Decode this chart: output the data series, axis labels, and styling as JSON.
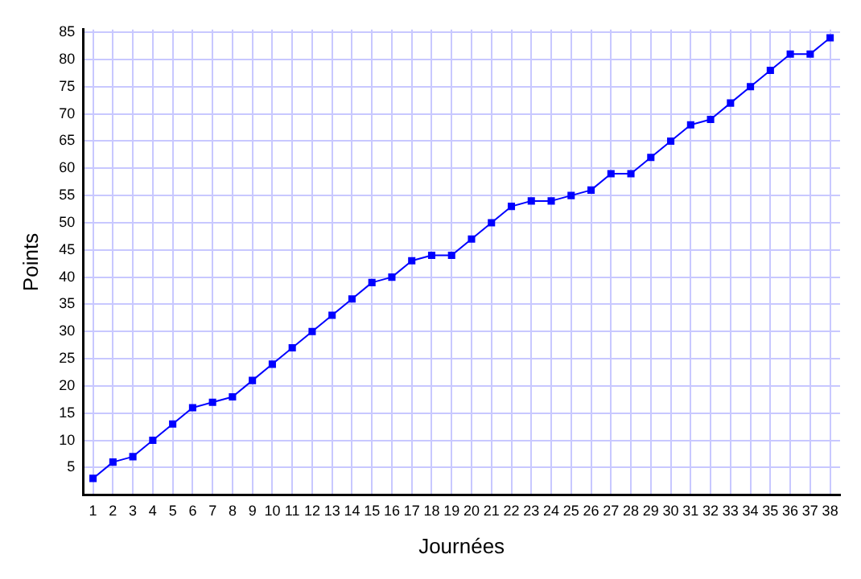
{
  "chart_data": {
    "type": "line",
    "xlabel": "Journées",
    "ylabel": "Points",
    "x": [
      1,
      2,
      3,
      4,
      5,
      6,
      7,
      8,
      9,
      10,
      11,
      12,
      13,
      14,
      15,
      16,
      17,
      18,
      19,
      20,
      21,
      22,
      23,
      24,
      25,
      26,
      27,
      28,
      29,
      30,
      31,
      32,
      33,
      34,
      35,
      36,
      37,
      38
    ],
    "series": [
      {
        "color": "#0000ff",
        "values": [
          3,
          6,
          7,
          10,
          13,
          16,
          17,
          18,
          21,
          24,
          27,
          30,
          33,
          36,
          39,
          40,
          43,
          44,
          44,
          47,
          50,
          53,
          54,
          54,
          55,
          56,
          59,
          59,
          62,
          65,
          68,
          69,
          72,
          75,
          78,
          81,
          81,
          84
        ]
      }
    ],
    "xlim": [
      0.5,
      38.5
    ],
    "xticks": [
      1,
      2,
      3,
      4,
      5,
      6,
      7,
      8,
      9,
      10,
      11,
      12,
      13,
      14,
      15,
      16,
      17,
      18,
      19,
      20,
      21,
      22,
      23,
      24,
      25,
      26,
      27,
      28,
      29,
      30,
      31,
      32,
      33,
      34,
      35,
      36,
      37,
      38
    ],
    "ylim": [
      0,
      85.5
    ],
    "yticks": [
      5,
      10,
      15,
      20,
      25,
      30,
      35,
      40,
      45,
      50,
      55,
      60,
      65,
      70,
      75,
      80,
      85
    ],
    "grid": true,
    "marker": "square",
    "line_style": "solid",
    "legend": false
  }
}
